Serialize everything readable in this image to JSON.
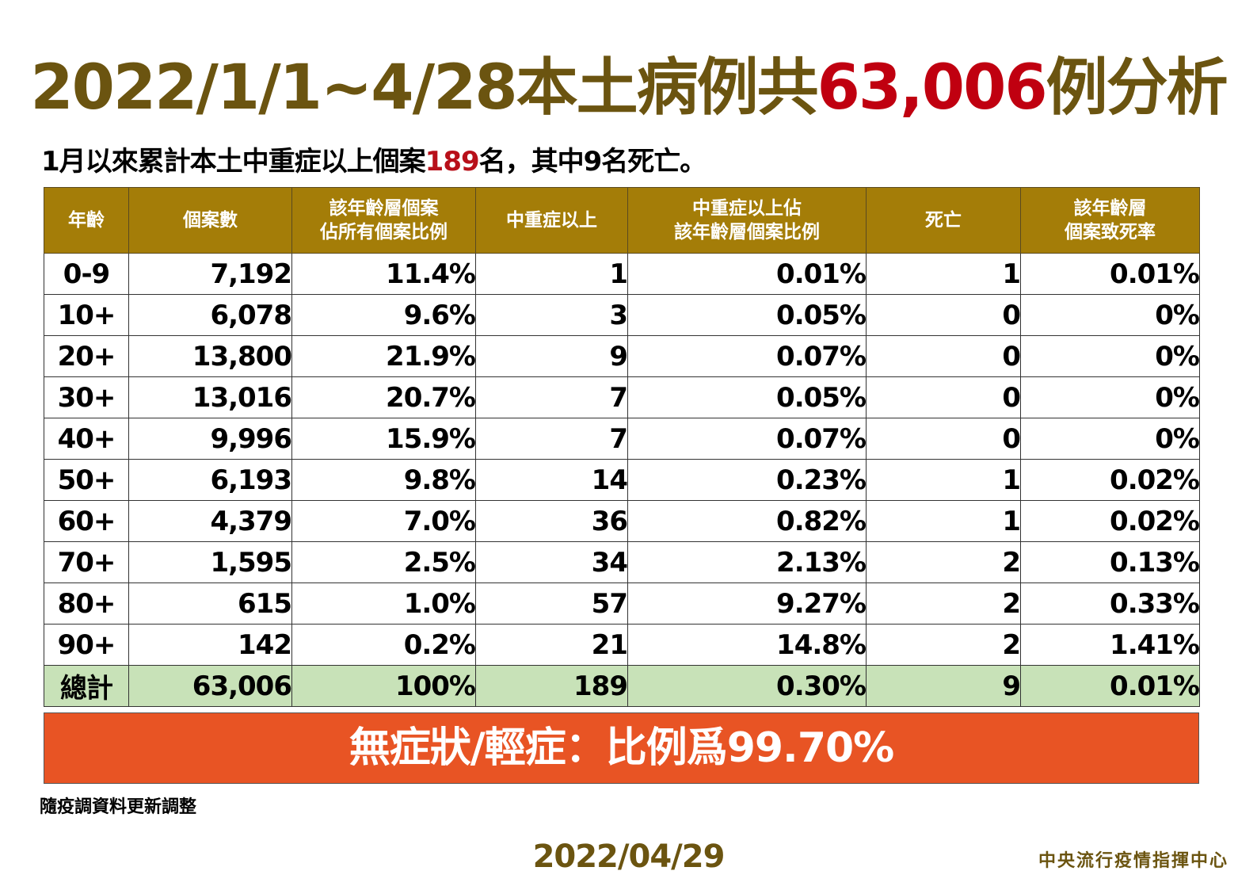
{
  "title": {
    "prefix": "2022/1/1~4/28本土病例共",
    "highlight": "63,006",
    "suffix": "例分析"
  },
  "subtitle": {
    "prefix": "1月以來累計本土中重症以上個案",
    "highlight": "189",
    "suffix": "名，其中9名死亡。"
  },
  "table": {
    "headers": [
      [
        "年齡"
      ],
      [
        "個案數"
      ],
      [
        "該年齡層個案",
        "佔所有個案比例"
      ],
      [
        "中重症以上"
      ],
      [
        "中重症以上佔",
        "該年齡層個案比例"
      ],
      [
        "死亡"
      ],
      [
        "該年齡層",
        "個案致死率"
      ]
    ]
  },
  "banner": "無症狀/輕症：比例爲99.70%",
  "footnote": "隨疫調資料更新調整",
  "date": "2022/04/29",
  "org": "中央流行疫情指揮中心",
  "colors": {
    "title": "#6b5410",
    "highlight": "#c00010",
    "header_bg": "#a47d08",
    "total_bg": "#c8e2b8",
    "banner_bg": "#e85424"
  },
  "chart_data": {
    "type": "table",
    "title": "2022/1/1~4/28本土病例共63,006例分析",
    "subtitle": "1月以來累計本土中重症以上個案189名，其中9名死亡。",
    "columns": [
      "年齡",
      "個案數",
      "該年齡層個案佔所有個案比例",
      "中重症以上",
      "中重症以上佔該年齡層個案比例",
      "死亡",
      "該年齡層個案致死率"
    ],
    "rows": [
      [
        "0-9",
        "7,192",
        "11.4%",
        "1",
        "0.01%",
        "1",
        "0.01%"
      ],
      [
        "10+",
        "6,078",
        "9.6%",
        "3",
        "0.05%",
        "0",
        "0%"
      ],
      [
        "20+",
        "13,800",
        "21.9%",
        "9",
        "0.07%",
        "0",
        "0%"
      ],
      [
        "30+",
        "13,016",
        "20.7%",
        "7",
        "0.05%",
        "0",
        "0%"
      ],
      [
        "40+",
        "9,996",
        "15.9%",
        "7",
        "0.07%",
        "0",
        "0%"
      ],
      [
        "50+",
        "6,193",
        "9.8%",
        "14",
        "0.23%",
        "1",
        "0.02%"
      ],
      [
        "60+",
        "4,379",
        "7.0%",
        "36",
        "0.82%",
        "1",
        "0.02%"
      ],
      [
        "70+",
        "1,595",
        "2.5%",
        "34",
        "2.13%",
        "2",
        "0.13%"
      ],
      [
        "80+",
        "615",
        "1.0%",
        "57",
        "9.27%",
        "2",
        "0.33%"
      ],
      [
        "90+",
        "142",
        "0.2%",
        "21",
        "14.8%",
        "2",
        "1.41%"
      ]
    ],
    "total": [
      "總計",
      "63,006",
      "100%",
      "189",
      "0.30%",
      "9",
      "0.01%"
    ],
    "annotations": [
      "無症狀/輕症：比例爲99.70%",
      "隨疫調資料更新調整"
    ]
  }
}
